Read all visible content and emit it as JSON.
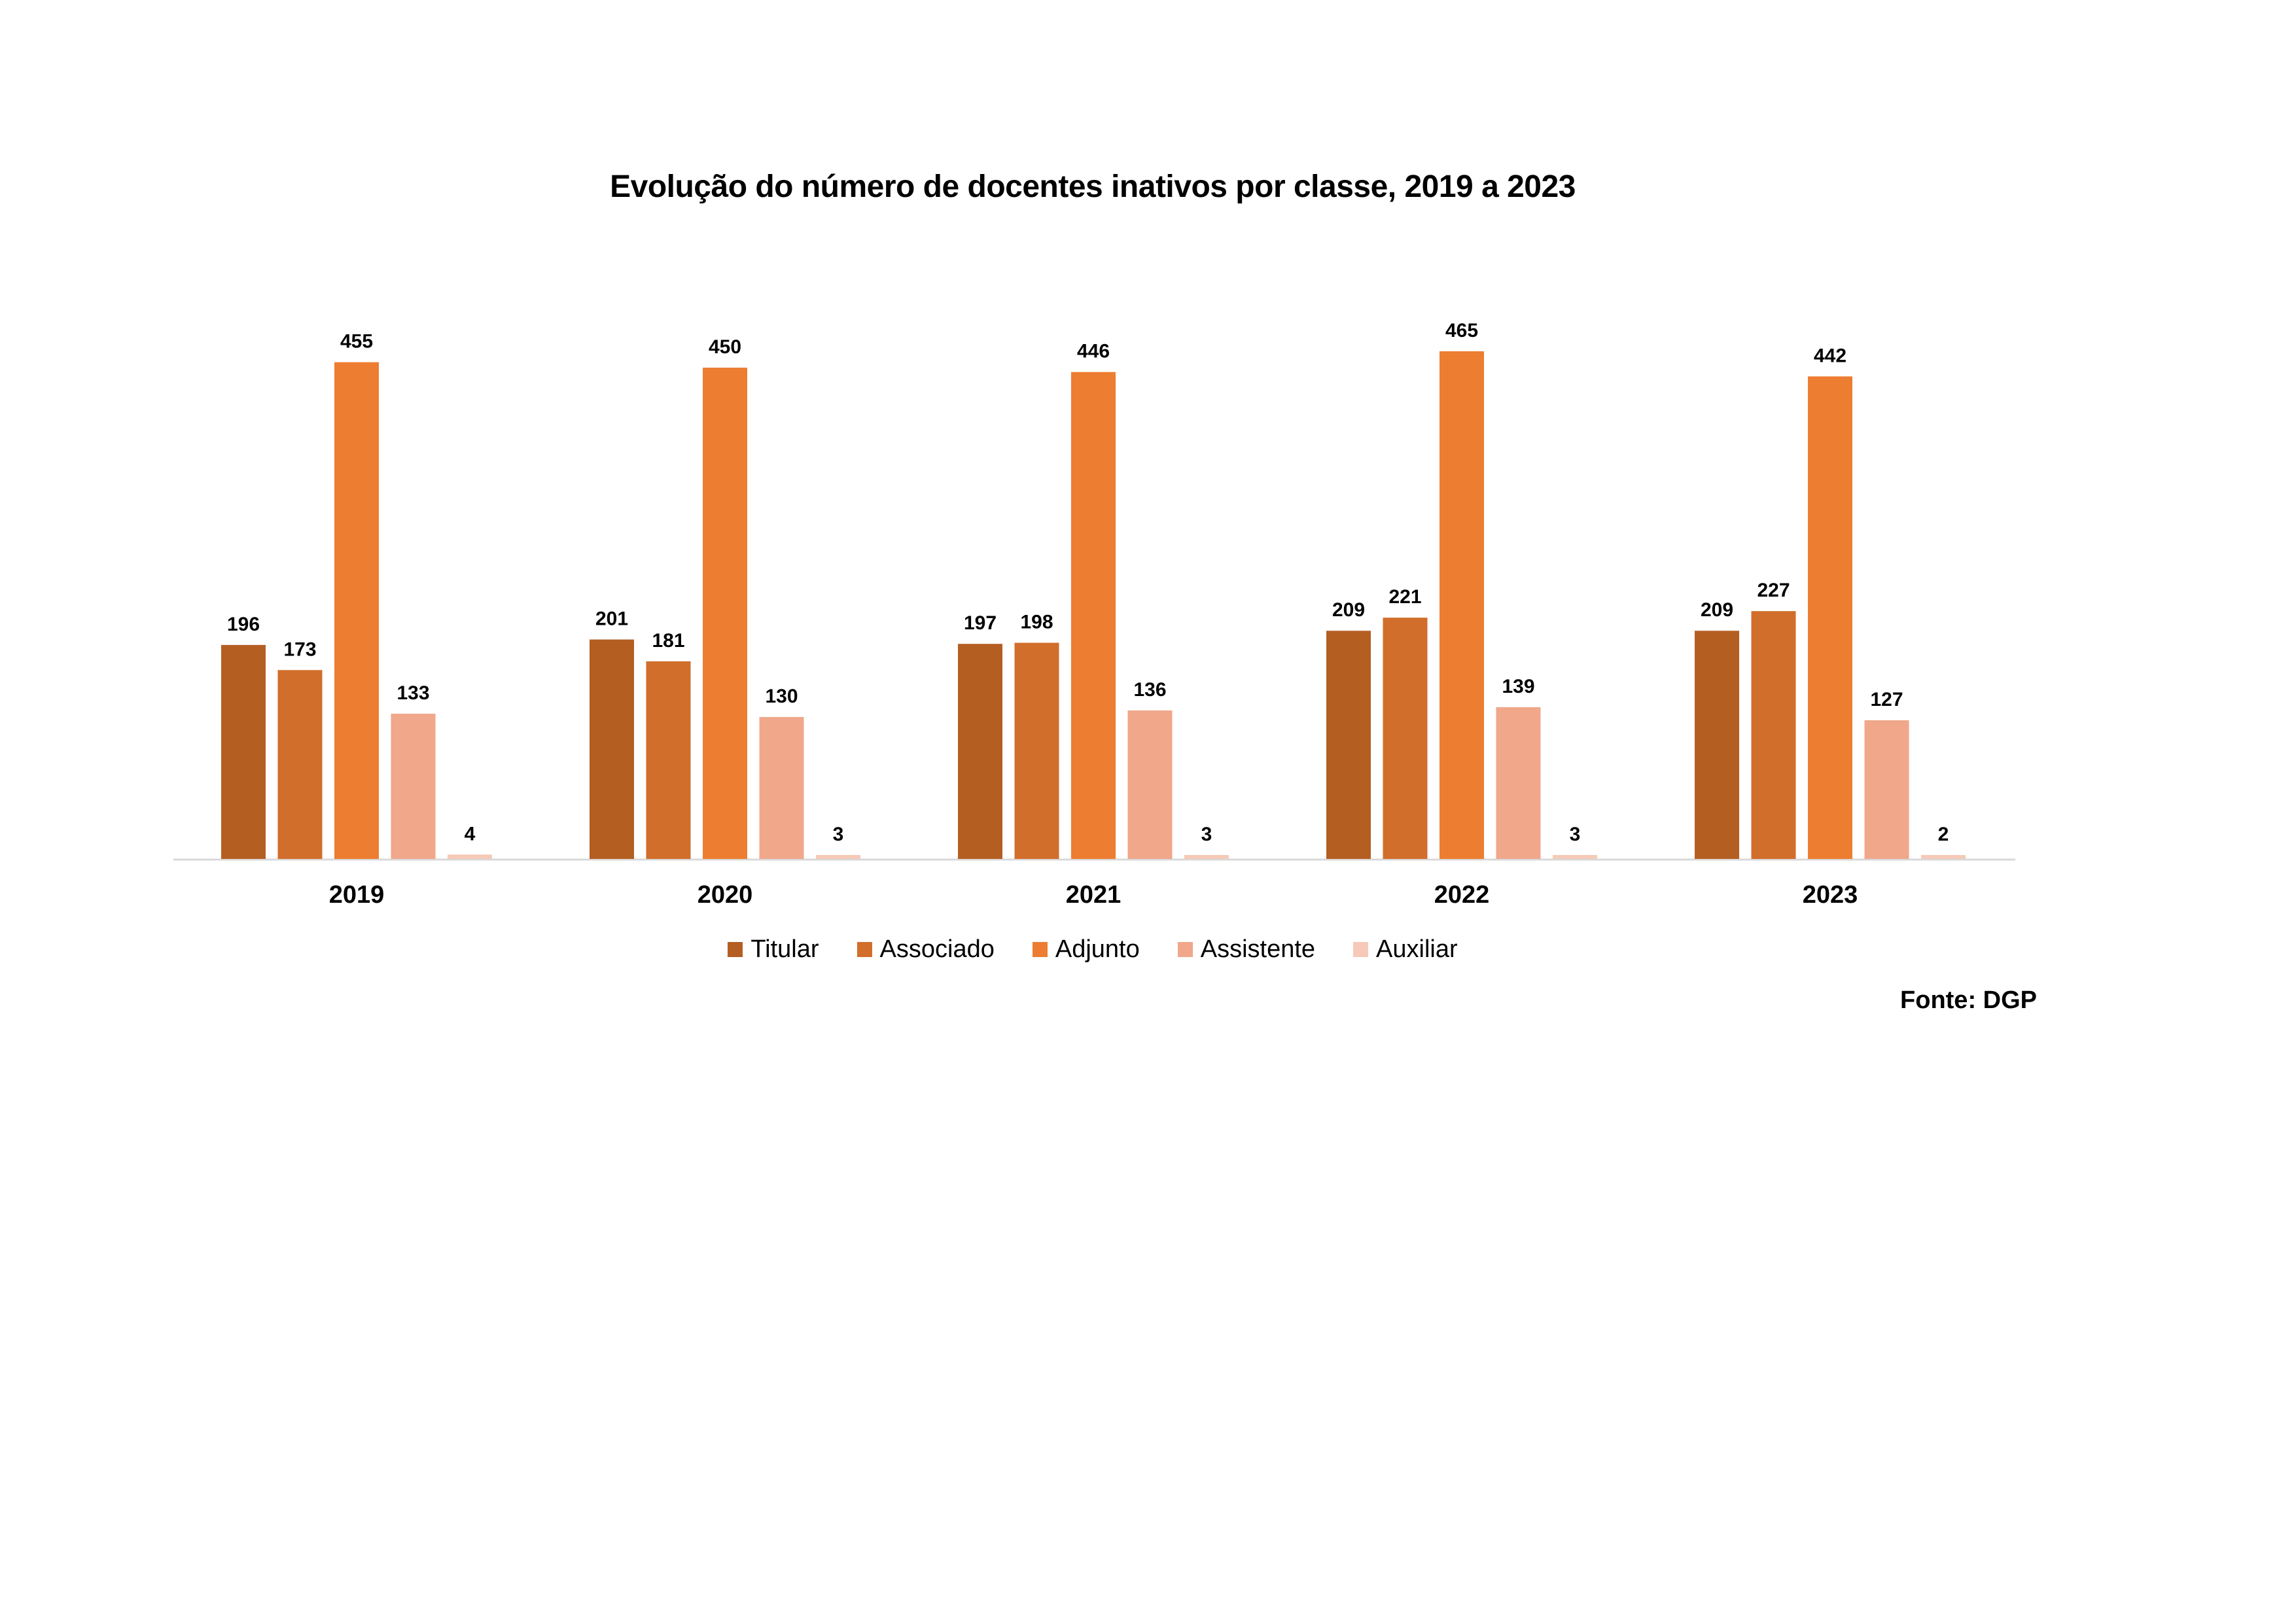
{
  "chart_data": {
    "type": "bar",
    "title": "Evolução do número de docentes inativos por classe, 2019 a 2023",
    "categories": [
      "2019",
      "2020",
      "2021",
      "2022",
      "2023"
    ],
    "series": [
      {
        "name": "Titular",
        "color": "#B45E22",
        "values": [
          196,
          201,
          197,
          209,
          209
        ]
      },
      {
        "name": "Associado",
        "color": "#D16E2B",
        "values": [
          173,
          181,
          198,
          221,
          227
        ]
      },
      {
        "name": "Adjunto",
        "color": "#ED7D31",
        "values": [
          455,
          450,
          446,
          465,
          442
        ]
      },
      {
        "name": "Assistente",
        "color": "#F0A78A",
        "values": [
          133,
          130,
          136,
          139,
          127
        ]
      },
      {
        "name": "Auxiliar",
        "color": "#F6C9B8",
        "values": [
          4,
          3,
          3,
          3,
          2
        ]
      }
    ],
    "xlabel": "",
    "ylabel": "",
    "ylim": [
      0,
      465
    ],
    "grid": false,
    "legend_position": "bottom",
    "axis_color": "#D9D9D9"
  },
  "source": "Fonte: DGP"
}
